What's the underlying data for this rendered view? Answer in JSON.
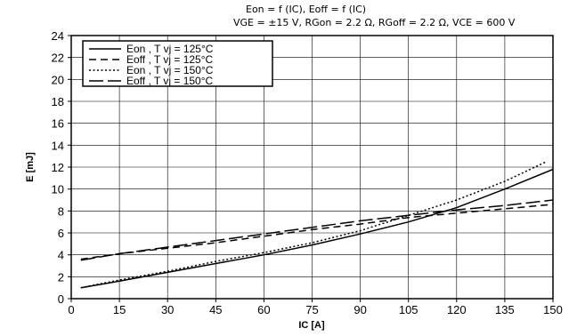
{
  "chart_data": {
    "type": "line",
    "title_lines": [
      "Eon = f (IC), Eoff = f (IC)",
      "VGE = ±15 V, RGon = 2.2 Ω, RGoff = 2.2 Ω, VCE = 600 V"
    ],
    "xlabel": "IC [A]",
    "ylabel": "E [mJ]",
    "xlim": [
      0,
      150
    ],
    "ylim": [
      0,
      24
    ],
    "x_ticks": [
      0,
      15,
      30,
      45,
      60,
      75,
      90,
      105,
      120,
      135,
      150
    ],
    "y_ticks": [
      0,
      2,
      4,
      6,
      8,
      10,
      12,
      14,
      16,
      18,
      20,
      22,
      24
    ],
    "grid": true,
    "legend_position": "top-left",
    "series": [
      {
        "name": "Eon , T vj = 125°C",
        "style": "solid",
        "color": "#000000",
        "x": [
          3,
          15,
          30,
          45,
          60,
          75,
          90,
          105,
          120,
          135,
          150
        ],
        "y": [
          1.0,
          1.6,
          2.4,
          3.2,
          4.0,
          4.9,
          5.9,
          7.0,
          8.3,
          10.0,
          11.8
        ]
      },
      {
        "name": "Eoff , T vj = 125°C",
        "style": "dashed",
        "color": "#000000",
        "x": [
          3,
          15,
          30,
          45,
          60,
          75,
          90,
          105,
          120,
          135,
          150
        ],
        "y": [
          3.6,
          4.1,
          4.6,
          5.1,
          5.7,
          6.3,
          6.8,
          7.4,
          7.8,
          8.2,
          8.6
        ]
      },
      {
        "name": "Eon , T vj = 150°C",
        "style": "dotted",
        "color": "#000000",
        "x": [
          3,
          15,
          30,
          45,
          60,
          75,
          90,
          105,
          120,
          135,
          148
        ],
        "y": [
          1.0,
          1.7,
          2.5,
          3.4,
          4.2,
          5.1,
          6.2,
          7.6,
          9.0,
          10.7,
          12.5
        ]
      },
      {
        "name": "Eoff , T vj = 150°C",
        "style": "longdash",
        "color": "#000000",
        "x": [
          3,
          15,
          30,
          45,
          60,
          75,
          90,
          105,
          120,
          135,
          150
        ],
        "y": [
          3.5,
          4.1,
          4.7,
          5.3,
          5.9,
          6.5,
          7.1,
          7.6,
          8.1,
          8.5,
          9.0
        ]
      }
    ]
  }
}
